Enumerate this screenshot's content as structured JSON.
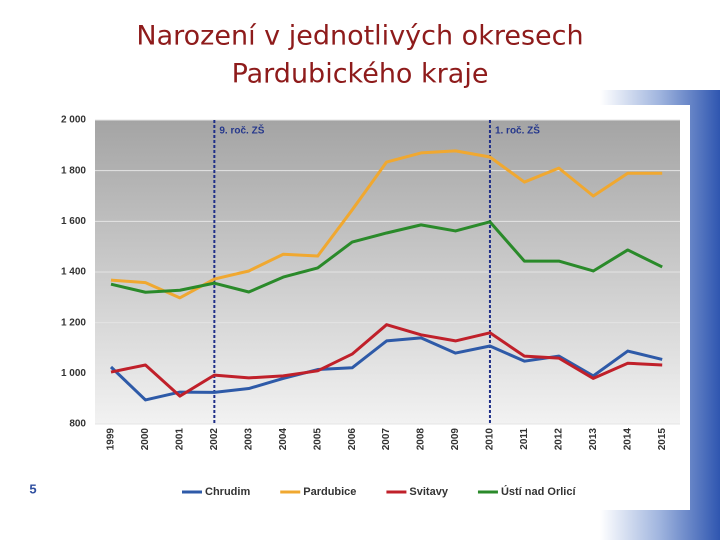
{
  "chart_data": {
    "type": "line",
    "title": [
      "Narození v jednotlivých okresech",
      "Pardubického kraje"
    ],
    "categories": [
      "1999",
      "2000",
      "2001",
      "2002",
      "2003",
      "2004",
      "2005",
      "2006",
      "2007",
      "2008",
      "2009",
      "2010",
      "2011",
      "2012",
      "2013",
      "2014",
      "2015"
    ],
    "series": [
      {
        "name": "Chrudim",
        "color": "#2e5aa8",
        "values": [
          1025,
          895,
          926,
          925,
          940,
          980,
          1015,
          1022,
          1128,
          1140,
          1080,
          1108,
          1048,
          1068,
          990,
          1088,
          1055
        ]
      },
      {
        "name": "Pardubice",
        "color": "#f0a830",
        "values": [
          1368,
          1358,
          1298,
          1372,
          1404,
          1470,
          1463,
          1645,
          1834,
          1870,
          1878,
          1854,
          1755,
          1810,
          1700,
          1790,
          1790
        ]
      },
      {
        "name": "Svitavy",
        "color": "#c0202a",
        "values": [
          1005,
          1033,
          910,
          993,
          982,
          990,
          1010,
          1076,
          1192,
          1152,
          1128,
          1160,
          1068,
          1060,
          980,
          1040,
          1033
        ]
      },
      {
        "name": "Ústí nad Orlicí",
        "color": "#2a8a2a",
        "values": [
          1352,
          1320,
          1328,
          1356,
          1321,
          1380,
          1416,
          1518,
          1554,
          1586,
          1562,
          1598,
          1443,
          1443,
          1404,
          1487,
          1420
        ]
      }
    ],
    "ylim": [
      800,
      2000
    ],
    "yticks": [
      800,
      {
        "value": 1000,
        "label": "1 000"
      },
      {
        "value": 1200,
        "label": "1 200"
      },
      {
        "value": 1400,
        "label": "1 400"
      },
      {
        "value": 1600,
        "label": "1 600"
      },
      {
        "value": 1800,
        "label": "1 800"
      },
      {
        "value": 2000,
        "label": "2 000"
      }
    ],
    "grid": true,
    "annotations": [
      {
        "x": "2002",
        "label": "9. roč. ZŠ"
      },
      {
        "x": "2010",
        "label": "1. roč. ZŠ"
      }
    ],
    "page_number": "5"
  }
}
